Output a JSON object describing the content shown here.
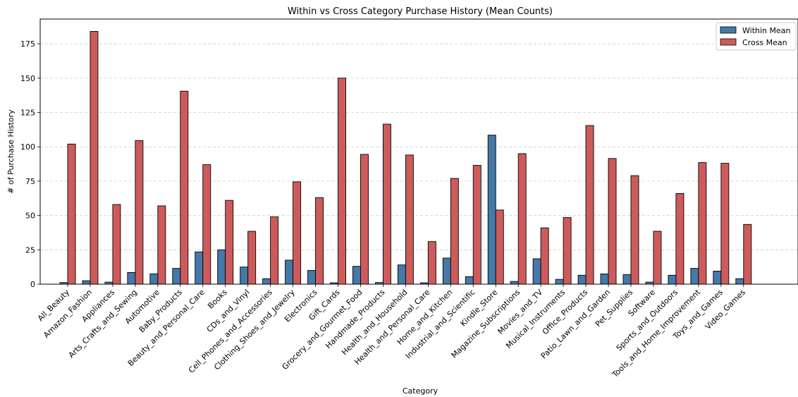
{
  "chart_data": {
    "type": "bar",
    "title": "Within vs Cross Category Purchase History (Mean Counts)",
    "xlabel": "Category",
    "ylabel": "# of Purchase History",
    "ylim": [
      0,
      193
    ],
    "yticks": [
      0,
      25,
      50,
      75,
      100,
      125,
      150,
      175
    ],
    "grid": "y dashed",
    "legend_position": "top-right",
    "categories": [
      "All_Beauty",
      "Amazon_Fashion",
      "Appliances",
      "Arts_Crafts_and_Sewing",
      "Automotive",
      "Baby_Products",
      "Beauty_and_Personal_Care",
      "Books",
      "CDs_and_Vinyl",
      "Cell_Phones_and_Accessories",
      "Clothing_Shoes_and_Jewelry",
      "Electronics",
      "Gift_Cards",
      "Grocery_and_Gourmet_Food",
      "Handmade_Products",
      "Health_and_Household",
      "Health_and_Personal_Care",
      "Home_and_Kitchen",
      "Industrial_and_Scientific",
      "Kindle_Store",
      "Magazine_Subscriptions",
      "Movies_and_TV",
      "Musical_Instruments",
      "Office_Products",
      "Patio_Lawn_and_Garden",
      "Pet_Supplies",
      "Software",
      "Sports_and_Outdoors",
      "Tools_and_Home_Improvement",
      "Toys_and_Games",
      "Video_Games"
    ],
    "series": [
      {
        "name": "Within Mean",
        "color": "#4479a8",
        "values": [
          1.2,
          2.5,
          1.5,
          8.5,
          7.5,
          11.5,
          23.5,
          25,
          12.5,
          4,
          17.5,
          10,
          1,
          13,
          1.2,
          14,
          1,
          19,
          5.5,
          108.5,
          2,
          18.5,
          3.5,
          6.5,
          7.5,
          7,
          1.5,
          6.5,
          11.5,
          9.5,
          4
        ]
      },
      {
        "name": "Cross Mean",
        "color": "#cd5b5b",
        "values": [
          102,
          184,
          58,
          104.5,
          57,
          140.5,
          87,
          61,
          38.5,
          49,
          74.5,
          63,
          150,
          94.5,
          116.5,
          94,
          31,
          77,
          86.5,
          54,
          95,
          41,
          48.5,
          115.5,
          91.5,
          79,
          38.5,
          66,
          88.5,
          88,
          43.5
        ]
      }
    ]
  }
}
